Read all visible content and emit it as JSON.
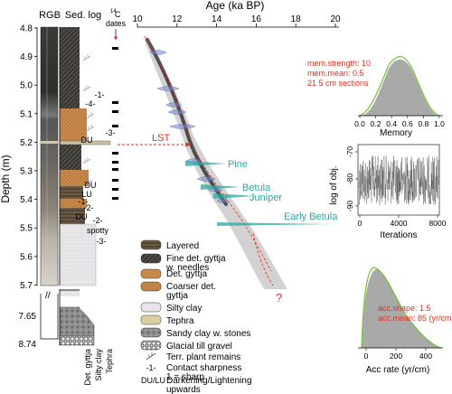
{
  "age_axis": {
    "label": "Age (ka BP)",
    "ticks": [
      "10",
      "12",
      "14",
      "16",
      "18",
      "20"
    ]
  },
  "depth_axis": {
    "label": "Depth (m)",
    "ticks": [
      "4.8",
      "4.9",
      "5.0",
      "5.1",
      "5.2",
      "5.3",
      "5.4",
      "5.5",
      "5.6",
      "5.7"
    ],
    "lower_ticks": [
      "7.65",
      "8.74"
    ]
  },
  "column_headers": {
    "rgb": "RGB",
    "sedlog": "Sed. log",
    "c14_line1": "14",
    "c14_line2": "C",
    "c14_line3": "dates"
  },
  "sed_codes": [
    "-1-",
    "-4-",
    "-3-",
    "DU",
    "DU",
    "LU",
    "-1-",
    "-2-",
    "DU",
    "-2-",
    "spotty",
    "-3-"
  ],
  "annotations": {
    "lst": "LST",
    "pine": "Pine",
    "betula": "Betula",
    "juniper": "Juniper",
    "early_betula": "Early Betula",
    "question": "?"
  },
  "legend": [
    {
      "label": "Layered"
    },
    {
      "label": "Fine det. gyttja w. needles"
    },
    {
      "label": "Det. gyttja"
    },
    {
      "label": "Coarser det. gyttja"
    },
    {
      "label": "Silty clay"
    },
    {
      "label": "Tephra"
    },
    {
      "label": "Sandy clay w. stones"
    },
    {
      "label": "Glacial till gravel"
    },
    {
      "label": "Terr. plant remains"
    },
    {
      "label": "Contact sharpness 1 = sharp",
      "symbol": "-1-"
    },
    {
      "label": "Darkening/Lightening upwards",
      "symbol": "DU/LU"
    }
  ],
  "lower_column_labels": [
    "Det. gyttja",
    "Silty clay",
    "Tephra"
  ],
  "memory_panel": {
    "params": [
      "mem.strength: 10",
      "mem.mean: 0.5",
      "21 5 cm sections"
    ],
    "xlabel": "Memory",
    "xticks": [
      "0.0",
      "0.2",
      "0.4",
      "0.6",
      "0.8",
      "1.0"
    ]
  },
  "log_panel": {
    "ylabel": "log of obj.",
    "yticks": [
      "-70",
      "-80",
      "-90"
    ],
    "xlabel": "Iterations",
    "xticks": [
      "0",
      "4000",
      "8000"
    ]
  },
  "acc_panel": {
    "params": [
      "acc.shape: 1.5",
      "acc.mean: 85 (yr/cm)"
    ],
    "xlabel": "Acc rate (yr/cm)",
    "xticks": [
      "0",
      "200",
      "400"
    ]
  },
  "colors": {
    "annotation_red": "#e0301e",
    "pollen_teal": "#2aa8a0",
    "prior_green": "#7dc242",
    "posterior_grey": "#9a9a9a",
    "date_blue": "#7788cc"
  }
}
